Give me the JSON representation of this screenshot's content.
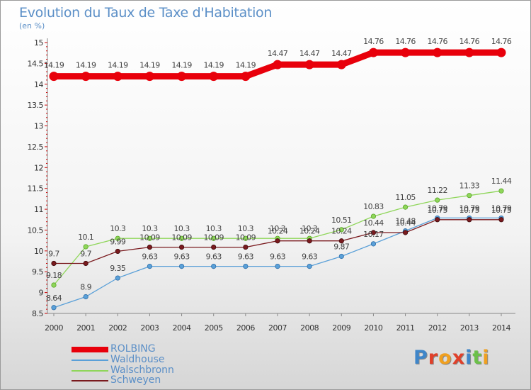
{
  "header": {
    "title": "Evolution du Taux de Taxe d'Habitation",
    "subtitle": "(en %)"
  },
  "logo": {
    "text": "Proxiti"
  },
  "chart_data": {
    "type": "line",
    "title": "Evolution du Taux de Taxe d'Habitation",
    "ylabel": "(en %)",
    "xlabel": "",
    "ylim": [
      8.5,
      15
    ],
    "yticks": [
      "8.5",
      "9",
      "9.5",
      "10",
      "10.5",
      "11",
      "11.5",
      "12",
      "12.5",
      "13",
      "13.5",
      "14",
      "14.5",
      "15"
    ],
    "x": [
      "2000",
      "2001",
      "2002",
      "2003",
      "2004",
      "2005",
      "2006",
      "2007",
      "2008",
      "2009",
      "2010",
      "2011",
      "2012",
      "2013",
      "2014"
    ],
    "grid": false,
    "legend_position": "bottom-left",
    "series": [
      {
        "name": "ROLBING",
        "color": "#e8000b",
        "values": [
          14.19,
          14.19,
          14.19,
          14.19,
          14.19,
          14.19,
          14.19,
          14.47,
          14.47,
          14.47,
          14.76,
          14.76,
          14.76,
          14.76,
          14.76
        ],
        "labels": [
          "14.19",
          "14.19",
          "14.19",
          "14.19",
          "14.19",
          "14.19",
          "14.19",
          "14.47",
          "14.47",
          "14.47",
          "14.76",
          "14.76",
          "14.76",
          "14.76",
          "14.76"
        ]
      },
      {
        "name": "Waldhouse",
        "color": "#5aa0d8",
        "values": [
          8.64,
          8.9,
          9.35,
          9.63,
          9.63,
          9.63,
          9.63,
          9.63,
          9.63,
          9.87,
          10.17,
          10.48,
          10.79,
          10.79,
          10.79
        ],
        "labels": [
          "8.64",
          "8.9",
          "9.35",
          "9.63",
          "9.63",
          "9.63",
          "9.63",
          "9.63",
          "9.63",
          "9.87",
          "10.17",
          "10.48",
          "10.79",
          "10.79",
          "10.79"
        ]
      },
      {
        "name": "Walschbronn",
        "color": "#8fd65a",
        "values": [
          9.18,
          10.1,
          10.3,
          10.3,
          10.3,
          10.3,
          10.3,
          10.3,
          10.3,
          10.51,
          10.83,
          11.05,
          11.22,
          11.33,
          11.44
        ],
        "labels": [
          "9.18",
          "10.1",
          "10.3",
          "10.3",
          "10.3",
          "10.3",
          "10.3",
          "10.3",
          "10.3",
          "10.51",
          "10.83",
          "11.05",
          "11.22",
          "11.33",
          "11.44"
        ]
      },
      {
        "name": "Schweyen",
        "color": "#7a1a1e",
        "values": [
          9.7,
          9.7,
          9.99,
          10.09,
          10.09,
          10.09,
          10.09,
          10.24,
          10.24,
          10.24,
          10.44,
          10.44,
          10.75,
          10.75,
          10.75
        ],
        "labels": [
          "9.7",
          "9.7",
          "9.99",
          "10.09",
          "10.09",
          "10.09",
          "10.09",
          "10.24",
          "10.24",
          "10.24",
          "10.44",
          "10.44",
          "10.75",
          "10.75",
          "10.75"
        ]
      }
    ]
  }
}
